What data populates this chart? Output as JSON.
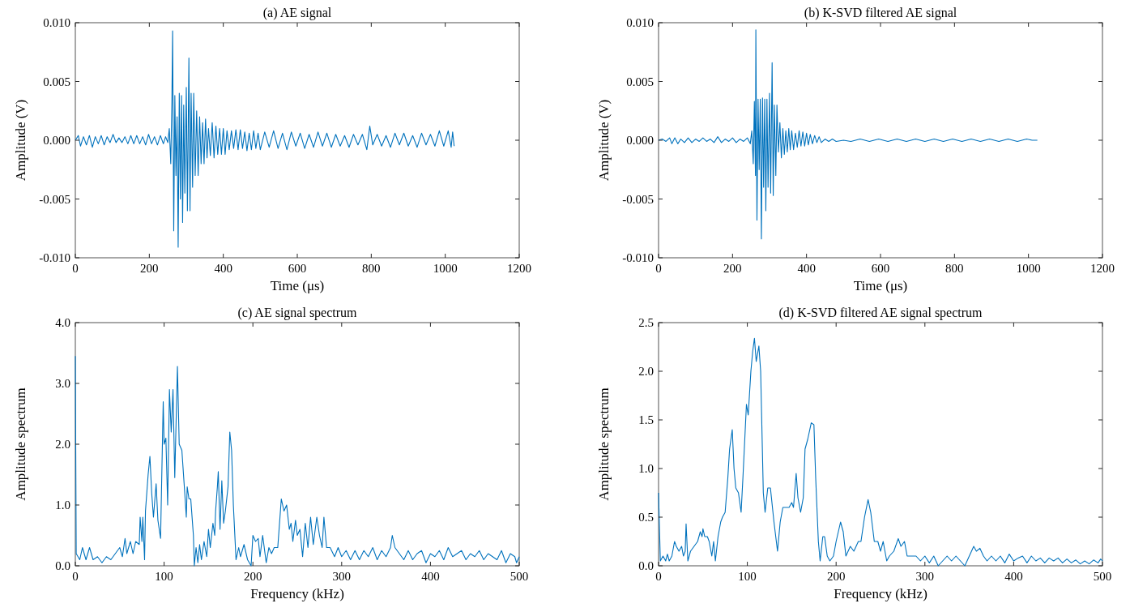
{
  "chart_data": [
    {
      "type": "line",
      "title": "(a) AE signal",
      "xlabel": "Time (μs)",
      "ylabel": "Amplitude (V)",
      "xlim": [
        0,
        1200
      ],
      "xticks": [
        0,
        200,
        400,
        600,
        800,
        1000,
        1200
      ],
      "ylim": [
        -0.01,
        0.01
      ],
      "yticks": [
        {
          "value": -0.01,
          "label": "-0.010"
        },
        {
          "value": -0.005,
          "label": "-0.005"
        },
        {
          "value": 0,
          "label": "0.000"
        },
        {
          "value": 0.005,
          "label": "0.005"
        },
        {
          "value": 0.01,
          "label": "0.010"
        }
      ],
      "color": "#0072bd",
      "x": [
        0,
        8,
        14,
        22,
        30,
        38,
        46,
        54,
        62,
        70,
        78,
        86,
        94,
        102,
        110,
        118,
        126,
        134,
        142,
        150,
        158,
        166,
        174,
        182,
        190,
        198,
        206,
        214,
        222,
        230,
        238,
        244,
        250,
        254,
        258,
        261,
        263,
        266,
        269,
        272,
        275,
        278,
        281,
        284,
        287,
        290,
        293,
        296,
        300,
        303,
        307,
        310,
        313,
        317,
        320,
        324,
        328,
        332,
        336,
        340,
        344,
        348,
        352,
        356,
        360,
        365,
        370,
        375,
        380,
        385,
        390,
        395,
        400,
        405,
        410,
        416,
        422,
        428,
        434,
        440,
        446,
        452,
        458,
        464,
        470,
        476,
        482,
        488,
        494,
        500,
        512,
        524,
        536,
        548,
        560,
        572,
        584,
        596,
        608,
        620,
        632,
        644,
        656,
        668,
        680,
        692,
        704,
        716,
        728,
        740,
        752,
        764,
        776,
        788,
        796,
        804,
        816,
        828,
        840,
        852,
        864,
        876,
        888,
        900,
        912,
        924,
        936,
        948,
        960,
        972,
        984,
        996,
        1008,
        1016,
        1020,
        1024
      ],
      "values": [
        0,
        0.0004,
        -0.0005,
        0.0003,
        -0.0004,
        0.0004,
        -0.0006,
        0.0003,
        -0.0003,
        0.0004,
        -0.0004,
        0.0003,
        -0.0002,
        0.0005,
        -0.0002,
        0.0002,
        -0.0002,
        0.0003,
        -0.0003,
        0.0004,
        -0.0003,
        0.0004,
        -0.0003,
        0.0003,
        -0.0004,
        0.0005,
        -0.0003,
        0.0003,
        -0.0004,
        0.0004,
        -0.0003,
        0.0003,
        -0.0002,
        0.001,
        -0.002,
        0.0033,
        0.0093,
        -0.0077,
        0.0038,
        -0.003,
        0.002,
        -0.0091,
        0.004,
        -0.005,
        0.0038,
        -0.007,
        0.003,
        -0.0045,
        0.0045,
        -0.006,
        0.007,
        -0.006,
        0.004,
        -0.004,
        0.004,
        -0.003,
        0.0025,
        -0.003,
        0.002,
        -0.002,
        0.0015,
        -0.002,
        0.0018,
        -0.0015,
        0.001,
        -0.0013,
        0.0015,
        -0.0015,
        0.0012,
        -0.0012,
        0.001,
        -0.0012,
        0.001,
        -0.0012,
        0.0008,
        -0.0008,
        0.0008,
        -0.0007,
        0.0009,
        -0.0008,
        0.0009,
        -0.0007,
        0.0007,
        -0.0009,
        0.0006,
        -0.0008,
        0.0008,
        -0.0007,
        0.0006,
        -0.0008,
        0.0007,
        -0.0006,
        0.0008,
        -0.0007,
        0.0006,
        -0.0008,
        0.0007,
        -0.0005,
        0.0006,
        -0.0007,
        0.0005,
        -0.0006,
        0.0007,
        -0.0005,
        0.0006,
        -0.0006,
        0.0005,
        -0.0005,
        0.0004,
        -0.0006,
        0.0005,
        -0.0004,
        0.0005,
        -0.0008,
        0.0012,
        -0.0004,
        0.0005,
        -0.0005,
        0.0004,
        -0.0006,
        0.0006,
        -0.0004,
        0.0006,
        -0.0005,
        0.0004,
        -0.0006,
        0.0006,
        -0.0004,
        0.0005,
        -0.0005,
        0.0008,
        -0.0005,
        0.0008,
        -0.0006,
        0.0007,
        -0.0005
      ]
    },
    {
      "type": "line",
      "title": "(b) K-SVD filtered AE signal",
      "xlabel": "Time (μs)",
      "ylabel": "Amplitude (V)",
      "xlim": [
        0,
        1200
      ],
      "xticks": [
        0,
        200,
        400,
        600,
        800,
        1000,
        1200
      ],
      "ylim": [
        -0.01,
        0.01
      ],
      "yticks": [
        {
          "value": -0.01,
          "label": "-0.010"
        },
        {
          "value": -0.005,
          "label": "-0.005"
        },
        {
          "value": 0,
          "label": "0.000"
        },
        {
          "value": 0.005,
          "label": "0.005"
        },
        {
          "value": 0.01,
          "label": "0.010"
        }
      ],
      "color": "#0072bd",
      "x": [
        0,
        10,
        20,
        30,
        36,
        44,
        52,
        60,
        70,
        80,
        90,
        100,
        110,
        120,
        130,
        140,
        150,
        160,
        170,
        180,
        190,
        200,
        210,
        220,
        230,
        240,
        248,
        252,
        256,
        259,
        262,
        263,
        266,
        269,
        272,
        275,
        278,
        281,
        284,
        287,
        290,
        293,
        296,
        300,
        303,
        307,
        310,
        313,
        317,
        320,
        324,
        328,
        332,
        336,
        340,
        344,
        348,
        352,
        356,
        360,
        365,
        370,
        375,
        380,
        385,
        390,
        395,
        400,
        405,
        410,
        416,
        422,
        428,
        434,
        440,
        450,
        460,
        470,
        480,
        500,
        520,
        545,
        570,
        595,
        620,
        645,
        670,
        695,
        720,
        745,
        770,
        795,
        820,
        845,
        870,
        895,
        920,
        945,
        970,
        995,
        1010,
        1024
      ],
      "values": [
        0,
        0.0001,
        -0.0001,
        0.0002,
        -0.0003,
        0.0002,
        -0.0003,
        0.0001,
        -0.0002,
        0.0002,
        -0.0002,
        0.0001,
        -0.0001,
        0.0002,
        -0.0001,
        0.0001,
        -0.0002,
        0.0003,
        -0.0002,
        0.0001,
        -0.0001,
        0.0002,
        -0.0002,
        0.0001,
        -0.0001,
        0.0002,
        -0.0003,
        0.0008,
        -0.002,
        0.0033,
        -0.003,
        0.0094,
        -0.0068,
        0.0035,
        -0.0025,
        0.0035,
        -0.0084,
        0.0036,
        -0.004,
        0.0035,
        -0.006,
        0.0035,
        -0.004,
        0.004,
        -0.0045,
        0.0066,
        -0.0047,
        0.003,
        -0.003,
        0.003,
        -0.001,
        0.0015,
        -0.0015,
        0.001,
        -0.0012,
        0.0008,
        -0.001,
        0.001,
        -0.0008,
        0.0008,
        -0.0008,
        0.0006,
        -0.0006,
        0.0008,
        -0.0005,
        0.0007,
        -0.0005,
        0.0006,
        -0.0004,
        0.0005,
        -0.0003,
        0.0004,
        -0.0002,
        0.0003,
        -0.0002,
        0.0001,
        -0.0001,
        0.0001,
        -0.0001,
        0,
        -0.0001,
        0.0001,
        -0.0001,
        0.0001,
        -0.0001,
        0.0001,
        -0.0001,
        0.0001,
        -0.0001,
        0.0001,
        -0.0001,
        0.0001,
        -0.0001,
        0.0001,
        -0.0001,
        0.0001,
        -0.0001,
        0.0001,
        -0.0001,
        0.0001,
        0,
        0
      ]
    },
    {
      "type": "line",
      "title": "(c) AE signal spectrum",
      "xlabel": "Frequency (kHz)",
      "ylabel": "Amplitude spectrum",
      "xlim": [
        0,
        500
      ],
      "xticks": [
        0,
        100,
        200,
        300,
        400,
        500
      ],
      "ylim": [
        0,
        4
      ],
      "yticks": [
        {
          "value": 0,
          "label": "0.0"
        },
        {
          "value": 1,
          "label": "1.0"
        },
        {
          "value": 2,
          "label": "2.0"
        },
        {
          "value": 3,
          "label": "3.0"
        },
        {
          "value": 4,
          "label": "4.0"
        }
      ],
      "color": "#0072bd",
      "x": [
        0,
        1,
        5,
        8,
        12,
        16,
        20,
        25,
        30,
        35,
        40,
        45,
        50,
        53,
        56,
        58,
        62,
        65,
        68,
        72,
        73,
        75,
        76,
        78,
        79,
        82,
        84,
        86,
        88,
        91,
        93,
        96,
        97,
        99,
        100,
        102,
        104,
        106,
        108,
        110,
        112,
        115,
        117,
        120,
        123,
        125,
        126,
        128,
        130,
        133,
        134,
        136,
        138,
        140,
        142,
        145,
        148,
        150,
        152,
        155,
        157,
        158,
        160,
        161,
        163,
        165,
        167,
        169,
        172,
        174,
        176,
        178,
        181,
        184,
        186,
        190,
        194,
        198,
        200,
        203,
        206,
        208,
        211,
        215,
        218,
        221,
        224,
        228,
        232,
        235,
        238,
        241,
        243,
        245,
        248,
        250,
        253,
        256,
        259,
        262,
        265,
        268,
        272,
        275,
        278,
        280,
        283,
        287,
        292,
        296,
        300,
        305,
        310,
        315,
        320,
        325,
        330,
        335,
        340,
        345,
        350,
        355,
        357,
        360,
        365,
        370,
        375,
        380,
        385,
        390,
        395,
        400,
        405,
        410,
        415,
        420,
        425,
        430,
        435,
        440,
        445,
        450,
        455,
        460,
        465,
        470,
        475,
        480,
        485,
        490,
        495,
        497,
        500
      ],
      "values": [
        3.45,
        0.2,
        0.1,
        0.3,
        0.1,
        0.3,
        0.1,
        0.15,
        0.05,
        0.15,
        0.1,
        0.2,
        0.3,
        0.15,
        0.45,
        0.2,
        0.4,
        0.2,
        0.4,
        0.35,
        0.8,
        0.4,
        0.8,
        0.1,
        0.9,
        1.5,
        1.8,
        1.2,
        0.8,
        1.35,
        0.75,
        0.45,
        1.2,
        2.7,
        2,
        2.1,
        1,
        2.9,
        2.2,
        2.9,
        1.45,
        3.28,
        2,
        1.9,
        1.25,
        0.8,
        1.3,
        1.1,
        1.1,
        0.5,
        0,
        0.3,
        0.05,
        0.35,
        0.1,
        0.4,
        0.15,
        0.6,
        0.3,
        0.7,
        0.5,
        0.9,
        1.3,
        1.55,
        0.6,
        1.4,
        0.7,
        0.9,
        1.3,
        2.2,
        1.9,
        1,
        0.1,
        0.3,
        0.15,
        0.35,
        0.1,
        0,
        0.5,
        0.4,
        0.45,
        0.15,
        0.5,
        0.05,
        0.3,
        0.2,
        0.3,
        0.3,
        1.1,
        0.9,
        1,
        0.6,
        0.7,
        0.4,
        0.75,
        0.5,
        0.6,
        0.15,
        0.7,
        0.3,
        0.8,
        0.35,
        0.8,
        0.5,
        0.3,
        0.8,
        0.3,
        0.3,
        0.15,
        0.3,
        0.15,
        0.25,
        0.1,
        0.25,
        0.1,
        0.25,
        0.15,
        0.3,
        0.1,
        0.25,
        0.15,
        0.3,
        0.5,
        0.3,
        0.2,
        0.1,
        0.25,
        0.1,
        0.2,
        0.25,
        0.05,
        0.2,
        0.15,
        0.25,
        0.1,
        0.3,
        0.15,
        0.2,
        0.25,
        0.1,
        0.2,
        0.15,
        0.25,
        0.1,
        0.2,
        0.15,
        0.1,
        0.25,
        0.05,
        0.2,
        0.15,
        0.05,
        0.15
      ]
    },
    {
      "type": "line",
      "title": "(d) K-SVD filtered AE signal spectrum",
      "xlabel": "Frequency (kHz)",
      "ylabel": "Amplitude spectrum",
      "xlim": [
        0,
        500
      ],
      "xticks": [
        0,
        100,
        200,
        300,
        400,
        500
      ],
      "ylim": [
        0,
        2.5
      ],
      "yticks": [
        {
          "value": 0,
          "label": "0.0"
        },
        {
          "value": 0.5,
          "label": "0.5"
        },
        {
          "value": 1,
          "label": "1.0"
        },
        {
          "value": 1.5,
          "label": "1.5"
        },
        {
          "value": 2,
          "label": "2.0"
        },
        {
          "value": 2.5,
          "label": "2.5"
        }
      ],
      "color": "#0072bd",
      "x": [
        0,
        2,
        5,
        8,
        10,
        12,
        15,
        18,
        20,
        23,
        26,
        28,
        30,
        31,
        33,
        36,
        40,
        44,
        47,
        49,
        50,
        52,
        55,
        57,
        60,
        62,
        64,
        67,
        70,
        72,
        75,
        78,
        80,
        83,
        85,
        87,
        90,
        93,
        95,
        99,
        101,
        104,
        106,
        108,
        110,
        113,
        115,
        118,
        120,
        123,
        126,
        130,
        134,
        137,
        140,
        143,
        147,
        150,
        152,
        155,
        157,
        160,
        163,
        165,
        168,
        172,
        175,
        177,
        180,
        182,
        185,
        187,
        190,
        193,
        197,
        200,
        205,
        208,
        211,
        216,
        220,
        225,
        228,
        232,
        236,
        239,
        243,
        247,
        250,
        253,
        257,
        260,
        265,
        270,
        273,
        277,
        280,
        285,
        290,
        295,
        300,
        305,
        310,
        315,
        320,
        325,
        330,
        335,
        340,
        345,
        350,
        355,
        358,
        362,
        366,
        370,
        375,
        380,
        385,
        390,
        395,
        400,
        405,
        410,
        415,
        420,
        425,
        430,
        435,
        440,
        445,
        450,
        455,
        460,
        465,
        470,
        475,
        480,
        485,
        490,
        495,
        498,
        500
      ],
      "values": [
        0.75,
        0.05,
        0.1,
        0.05,
        0.12,
        0.05,
        0.1,
        0.25,
        0.2,
        0.15,
        0.2,
        0.1,
        0.15,
        0.43,
        0.05,
        0.15,
        0.2,
        0.25,
        0.35,
        0.3,
        0.38,
        0.3,
        0.3,
        0.25,
        0.1,
        0.25,
        0.05,
        0.3,
        0.45,
        0.5,
        0.55,
        0.9,
        1.2,
        1.4,
        1,
        0.8,
        0.75,
        0.55,
        0.9,
        1.66,
        1.55,
        2,
        2.2,
        2.34,
        2.1,
        2.26,
        2,
        0.75,
        0.55,
        0.8,
        0.8,
        0.45,
        0.15,
        0.45,
        0.6,
        0.6,
        0.6,
        0.65,
        0.6,
        0.95,
        0.7,
        0.55,
        0.7,
        1.2,
        1.3,
        1.47,
        1.45,
        0.9,
        0.25,
        0.05,
        0.3,
        0.3,
        0.1,
        0.05,
        0.1,
        0.25,
        0.45,
        0.35,
        0.1,
        0.2,
        0.15,
        0.25,
        0.25,
        0.5,
        0.68,
        0.55,
        0.25,
        0.25,
        0.15,
        0.25,
        0.05,
        0.1,
        0.15,
        0.28,
        0.2,
        0.25,
        0.1,
        0.1,
        0.1,
        0.05,
        0.1,
        0.03,
        0.1,
        0,
        0.05,
        0.1,
        0.05,
        0.1,
        0.05,
        0,
        0.1,
        0.2,
        0.15,
        0.18,
        0.1,
        0.05,
        0.1,
        0.05,
        0.1,
        0.03,
        0.12,
        0.05,
        0.08,
        0.1,
        0.03,
        0.1,
        0.05,
        0.08,
        0.03,
        0.08,
        0.05,
        0.08,
        0.03,
        0.07,
        0.03,
        0.06,
        0.02,
        0.05,
        0.02,
        0.06,
        0.03,
        0.07,
        0.05
      ]
    }
  ]
}
